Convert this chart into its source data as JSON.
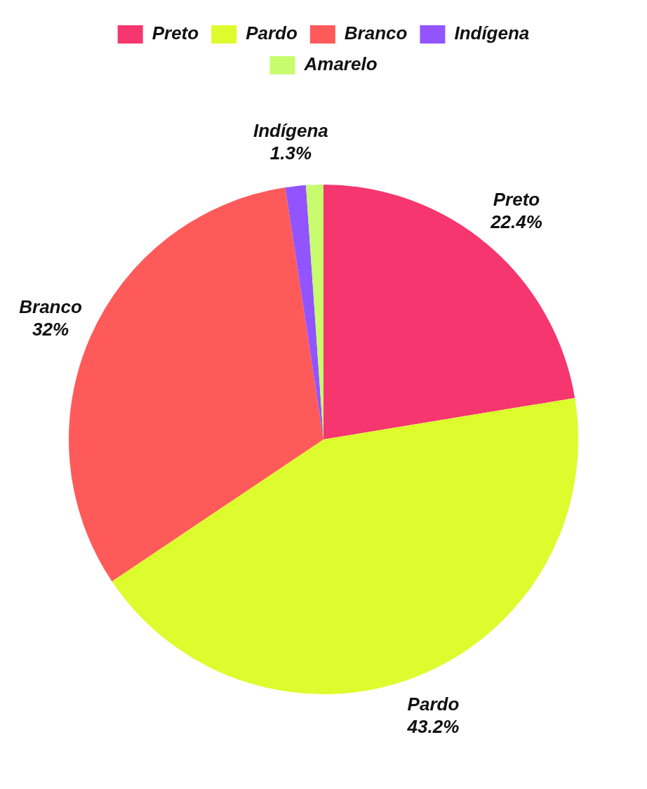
{
  "chart_data": {
    "type": "pie",
    "categories": [
      "Preto",
      "Pardo",
      "Branco",
      "Indígena",
      "Amarelo"
    ],
    "values": [
      22.4,
      43.2,
      32,
      1.3,
      1.1
    ],
    "colors": [
      "#f5366f",
      "#dcfc2e",
      "#ff5a5a",
      "#9254ff",
      "#c8fc6e"
    ],
    "value_labels": [
      "22.4%",
      "43.2%",
      "32%",
      "1.3%",
      null
    ],
    "legend": "top"
  }
}
